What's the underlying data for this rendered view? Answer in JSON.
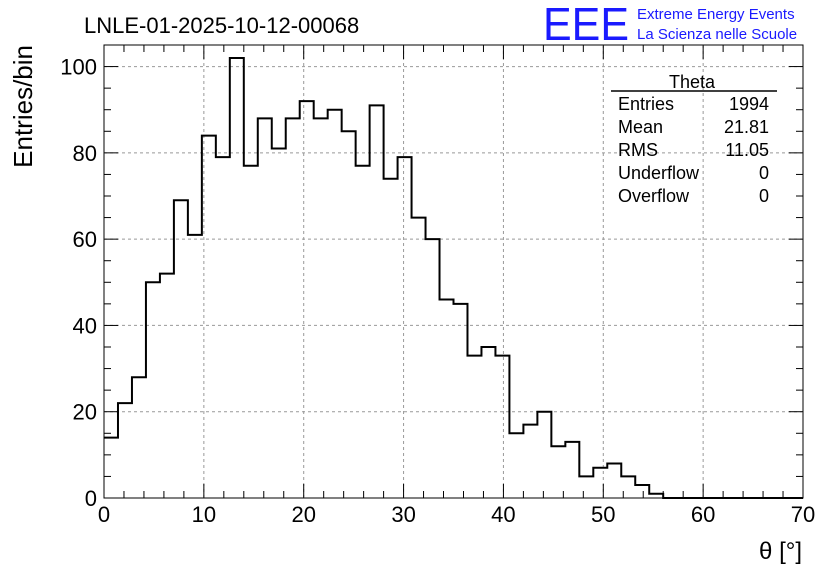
{
  "chart_data": {
    "type": "bar",
    "style": "step-histogram",
    "title": "LNLE-01-2025-10-12-00068",
    "xlabel": "θ [°]",
    "ylabel": "Entries/bin",
    "xlim": [
      0,
      70
    ],
    "ylim": [
      0,
      105
    ],
    "bin_width": 1.4,
    "x_ticks": [
      0,
      10,
      20,
      30,
      40,
      50,
      60,
      70
    ],
    "y_ticks": [
      0,
      20,
      40,
      60,
      80,
      100
    ],
    "grid": true,
    "values": [
      14,
      22,
      28,
      50,
      52,
      69,
      61,
      84,
      79,
      102,
      77,
      88,
      81,
      88,
      92,
      88,
      90,
      85,
      77,
      91,
      74,
      79,
      65,
      60,
      46,
      45,
      33,
      35,
      33,
      15,
      17,
      20,
      12,
      13,
      5,
      7,
      8,
      5,
      3,
      1,
      0,
      0,
      0,
      0,
      0,
      0,
      0,
      0,
      0,
      0
    ],
    "stats_box": {
      "title": "Theta",
      "rows": [
        {
          "label": "Entries",
          "value": "1994"
        },
        {
          "label": "Mean",
          "value": "21.81"
        },
        {
          "label": "RMS",
          "value": "11.05"
        },
        {
          "label": "Underflow",
          "value": "0"
        },
        {
          "label": "Overflow",
          "value": "0"
        }
      ]
    }
  },
  "logo": {
    "mark": "EEE",
    "line1": "Extreme Energy Events",
    "line2": "La Scienza nelle Scuole",
    "color": "#1a1aff"
  }
}
